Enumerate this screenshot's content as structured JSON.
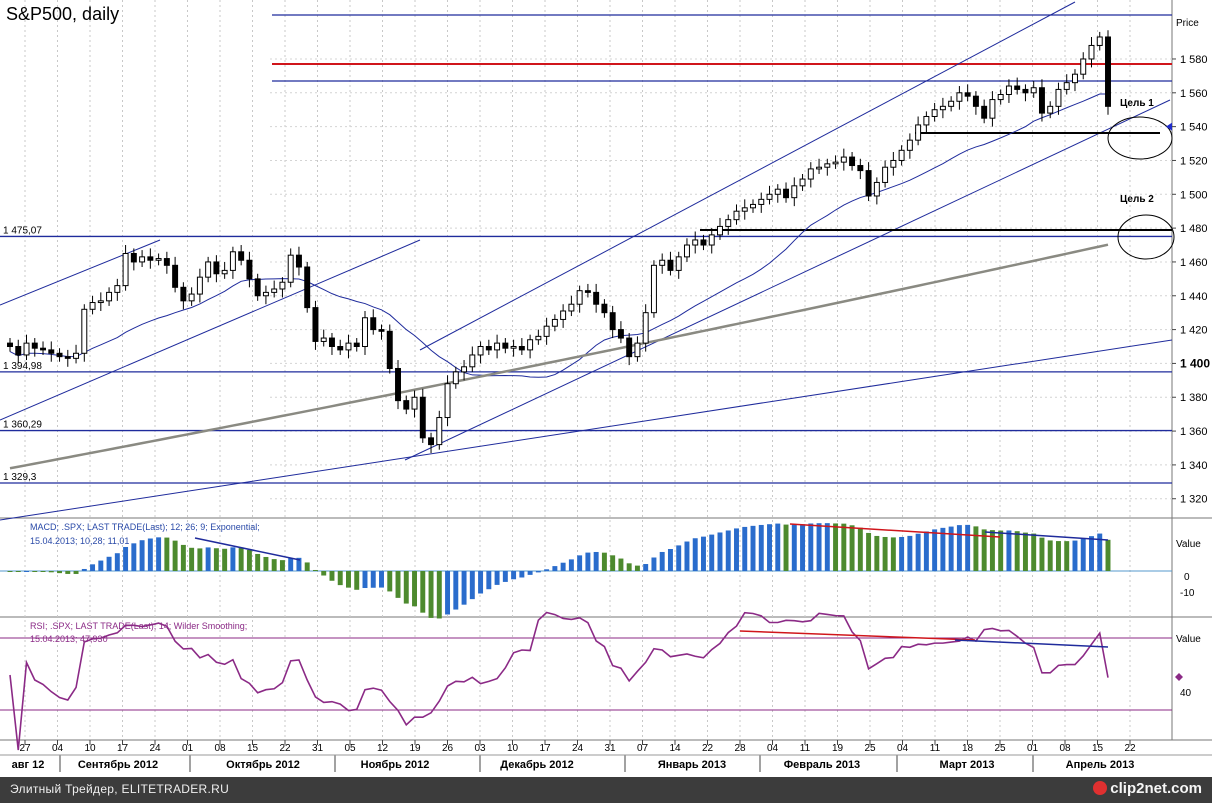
{
  "title": "S&P500, daily",
  "footer": {
    "source": "Элитный Трейдер, ELITETRADER.RU",
    "logo": "clip2net.com"
  },
  "colors": {
    "up": "#ffffff",
    "down": "#000000",
    "blue_line": "#1f2b9c",
    "red_line": "#d0151b",
    "sma": "#8a8a82",
    "macd_green": "#4d8a2e",
    "macd_blue": "#2a6ccc",
    "rsi": "#8b2a86"
  },
  "chart_data": [
    {
      "type": "candlestick",
      "title": "S&P500, daily",
      "ylabel": "Price",
      "ylim": [
        1305,
        1607
      ],
      "y_ticks": [
        "1 320",
        "1 340",
        "1 360",
        "1 380",
        "1 400",
        "1 420",
        "1 440",
        "1 460",
        "1 480",
        "1 500",
        "1 520",
        "1 540",
        "1 560",
        "1 580"
      ],
      "x_ticks": [
        "27",
        "04",
        "10",
        "17",
        "24",
        "01",
        "08",
        "15",
        "22",
        "31",
        "05",
        "12",
        "19",
        "26",
        "03",
        "10",
        "17",
        "24",
        "31",
        "07",
        "14",
        "22",
        "28",
        "04",
        "11",
        "19",
        "25",
        "04",
        "11",
        "18",
        "25",
        "01",
        "08",
        "15",
        "22"
      ],
      "x_groups": [
        "авг 12",
        "Сентябрь 2012",
        "Октябрь 2012",
        "Ноябрь 2012",
        "Декабрь 2012",
        "Январь 2013",
        "Февраль 2013",
        "Март 2013",
        "Апрель 2013"
      ],
      "horizontal_levels": [
        {
          "value": 1606,
          "color": "blue",
          "label": ""
        },
        {
          "value": 1577,
          "color": "red",
          "label": ""
        },
        {
          "value": 1567,
          "color": "blue",
          "label": ""
        },
        {
          "value": 1475.07,
          "color": "blue",
          "label": "1 475,07"
        },
        {
          "value": 1394.98,
          "color": "blue",
          "label": "1 394,98"
        },
        {
          "value": 1360.29,
          "color": "blue",
          "label": "1 360,29"
        },
        {
          "value": 1329.3,
          "color": "blue",
          "label": "1 329,3"
        }
      ],
      "annotations": [
        "Цель 1",
        "Цель 2"
      ],
      "last_value": "1 540",
      "series_close": [
        1410,
        1405,
        1412,
        1409,
        1408,
        1406,
        1404,
        1403,
        1406,
        1432,
        1436,
        1437,
        1442,
        1446,
        1465,
        1460,
        1463,
        1461,
        1462,
        1458,
        1445,
        1437,
        1441,
        1451,
        1460,
        1453,
        1455,
        1466,
        1461,
        1450,
        1440,
        1442,
        1444,
        1448,
        1464,
        1457,
        1433,
        1413,
        1415,
        1410,
        1408,
        1412,
        1410,
        1427,
        1420,
        1419,
        1397,
        1378,
        1373,
        1380,
        1356,
        1352,
        1368,
        1388,
        1395,
        1398,
        1405,
        1410,
        1408,
        1412,
        1409,
        1410,
        1408,
        1414,
        1416,
        1422,
        1426,
        1431,
        1435,
        1443,
        1442,
        1435,
        1430,
        1420,
        1415,
        1404,
        1412,
        1430,
        1458,
        1461,
        1455,
        1463,
        1470,
        1473,
        1470,
        1476,
        1481,
        1485,
        1490,
        1492,
        1494,
        1497,
        1500,
        1503,
        1498,
        1505,
        1509,
        1515,
        1516,
        1518,
        1519,
        1522,
        1517,
        1514,
        1499,
        1507,
        1516,
        1520,
        1526,
        1532,
        1541,
        1546,
        1550,
        1552,
        1555,
        1560,
        1558,
        1552,
        1545,
        1556,
        1559,
        1564,
        1562,
        1560,
        1563,
        1548,
        1552,
        1562,
        1566,
        1571,
        1580,
        1588,
        1593,
        1552
      ],
      "macd": {
        "name": "MACD; .SPX; LAST TRADE(Last); 12; 26; 9; Exponential;",
        "readout": "15.04.2013; 10,28; 11,01",
        "ylabel": "Value",
        "y_ticks": [
          "0",
          "-10"
        ]
      },
      "rsi": {
        "name": "RSI; .SPX; LAST TRADE(Last); 14; Wilder Smoothing;",
        "readout": "15.04.2013; 47,930",
        "ylabel": "Value",
        "y_ticks": [
          "40"
        ]
      }
    }
  ]
}
